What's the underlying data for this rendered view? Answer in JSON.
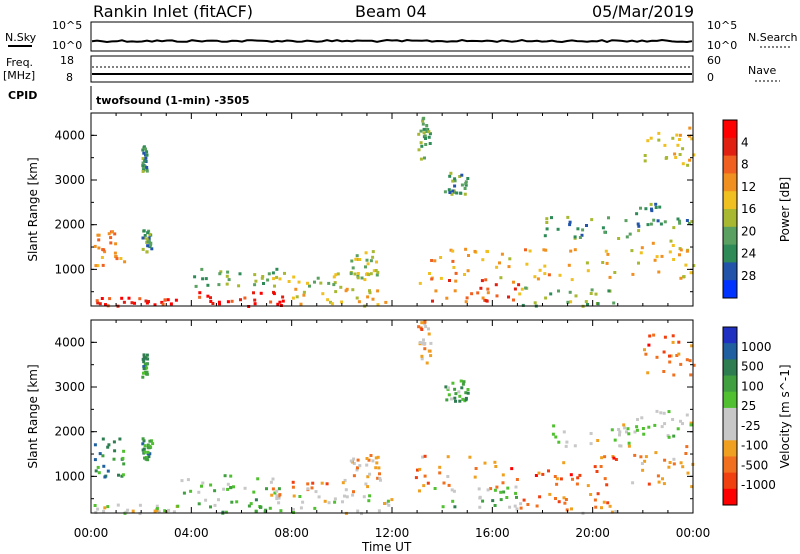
{
  "header": {
    "station": "Rankin Inlet (fitACF)",
    "beam": "Beam 04",
    "date": "05/Mar/2019"
  },
  "noise_panel": {
    "left_label": "N.Sky",
    "left_ticks": [
      "10^5",
      "10^0"
    ],
    "right_label": "N.Search",
    "right_ticks": [
      "10^5",
      "10^0"
    ]
  },
  "freq_panel": {
    "left_label_1": "Freq.",
    "left_label_2": "[MHz]",
    "left_ticks": [
      "18",
      "8"
    ],
    "right_label": "Nave",
    "right_ticks": [
      "60",
      "0"
    ]
  },
  "cpid_panel": {
    "label": "CPID",
    "text": "twofsound (1-min) -3505"
  },
  "x_axis": {
    "label": "Time UT",
    "ticks": [
      "00:00",
      "04:00",
      "08:00",
      "12:00",
      "16:00",
      "20:00",
      "00:00"
    ]
  },
  "chart_data": [
    {
      "type": "heatmap",
      "title": "",
      "xlabel": "Time UT",
      "ylabel": "Slant Range [km]",
      "xlim": [
        0,
        24
      ],
      "ylim": [
        180,
        4500
      ],
      "yticks": [
        1000,
        2000,
        3000,
        4000
      ],
      "colorbar": {
        "label": "Power [dB]",
        "ticks": [
          "4",
          "8",
          "12",
          "16",
          "20",
          "24",
          "28"
        ],
        "range": [
          0,
          30
        ],
        "colors": [
          "#0033ff",
          "#2255aa",
          "#2e8b57",
          "#5aa060",
          "#a8b830",
          "#f0c020",
          "#f09020",
          "#f06020",
          "#e02010",
          "#ff0000"
        ]
      },
      "regions": [
        {
          "t0": 0.1,
          "t1": 1.3,
          "r0": 1000,
          "r1": 1900,
          "c": 0.7
        },
        {
          "t0": 0.1,
          "t1": 3.5,
          "r0": 200,
          "r1": 400,
          "c": 0.85
        },
        {
          "t0": 2.0,
          "t1": 2.4,
          "r0": 1400,
          "r1": 1900,
          "c": 0.3
        },
        {
          "t0": 2.0,
          "t1": 2.2,
          "r0": 3200,
          "r1": 3800,
          "c": 0.3
        },
        {
          "t0": 3.5,
          "t1": 7.5,
          "r0": 650,
          "r1": 1050,
          "c": 0.35
        },
        {
          "t0": 4.2,
          "t1": 8.0,
          "r0": 200,
          "r1": 550,
          "c": 0.9
        },
        {
          "t0": 7.0,
          "t1": 11.0,
          "r0": 550,
          "r1": 950,
          "c": 0.45
        },
        {
          "t0": 8.0,
          "t1": 12.0,
          "r0": 200,
          "r1": 600,
          "c": 0.55
        },
        {
          "t0": 10.3,
          "t1": 11.5,
          "r0": 900,
          "r1": 1500,
          "c": 0.45
        },
        {
          "t0": 12.8,
          "t1": 16.5,
          "r0": 700,
          "r1": 1500,
          "c": 0.65
        },
        {
          "t0": 13.5,
          "t1": 17.0,
          "r0": 300,
          "r1": 800,
          "c": 0.75
        },
        {
          "t0": 13.0,
          "t1": 13.5,
          "r0": 3500,
          "r1": 4500,
          "c": 0.35
        },
        {
          "t0": 14.0,
          "t1": 15.0,
          "r0": 2700,
          "r1": 3200,
          "c": 0.3
        },
        {
          "t0": 16.0,
          "t1": 21.0,
          "r0": 800,
          "r1": 1500,
          "c": 0.6
        },
        {
          "t0": 17.0,
          "t1": 21.0,
          "r0": 200,
          "r1": 650,
          "c": 0.4
        },
        {
          "t0": 18.0,
          "t1": 21.5,
          "r0": 1700,
          "r1": 2200,
          "c": 0.3
        },
        {
          "t0": 21.5,
          "t1": 24.0,
          "r0": 800,
          "r1": 1700,
          "c": 0.55
        },
        {
          "t0": 22.0,
          "t1": 24.0,
          "r0": 3300,
          "r1": 4200,
          "c": 0.55
        },
        {
          "t0": 21.5,
          "t1": 24.0,
          "r0": 1900,
          "r1": 2500,
          "c": 0.3
        }
      ]
    },
    {
      "type": "heatmap",
      "title": "",
      "xlabel": "Time UT",
      "ylabel": "Slant Range [km]",
      "xlim": [
        0,
        24
      ],
      "ylim": [
        180,
        4500
      ],
      "yticks": [
        1000,
        2000,
        3000,
        4000
      ],
      "colorbar": {
        "label": "Velocity [m s^-1]",
        "ticks": [
          "1000",
          "500",
          "100",
          "25",
          "-25",
          "-100",
          "-500",
          "-1000"
        ],
        "range": [
          -1200,
          1200
        ],
        "colors": [
          "#ff0000",
          "#f04010",
          "#f07020",
          "#f0a020",
          "#c8c8c8",
          "#c8c8c8",
          "#50c030",
          "#40a040",
          "#2e7d50",
          "#2060a0",
          "#2030c0"
        ]
      },
      "regions": [
        {
          "t0": 0.1,
          "t1": 1.3,
          "r0": 1000,
          "r1": 1900,
          "c": 0.72
        },
        {
          "t0": 0.1,
          "t1": 3.5,
          "r0": 200,
          "r1": 400,
          "c": 0.45
        },
        {
          "t0": 2.0,
          "t1": 2.4,
          "r0": 1400,
          "r1": 1900,
          "c": 0.7
        },
        {
          "t0": 2.0,
          "t1": 2.2,
          "r0": 3200,
          "r1": 3800,
          "c": 0.7
        },
        {
          "t0": 3.5,
          "t1": 7.5,
          "r0": 650,
          "r1": 1050,
          "c": 0.55
        },
        {
          "t0": 4.2,
          "t1": 8.0,
          "r0": 200,
          "r1": 550,
          "c": 0.62
        },
        {
          "t0": 7.0,
          "t1": 11.0,
          "r0": 550,
          "r1": 950,
          "c": 0.3
        },
        {
          "t0": 8.0,
          "t1": 12.0,
          "r0": 200,
          "r1": 600,
          "c": 0.48
        },
        {
          "t0": 10.3,
          "t1": 11.5,
          "r0": 900,
          "r1": 1500,
          "c": 0.35
        },
        {
          "t0": 12.8,
          "t1": 16.5,
          "r0": 700,
          "r1": 1500,
          "c": 0.25
        },
        {
          "t0": 13.5,
          "t1": 17.0,
          "r0": 300,
          "r1": 800,
          "c": 0.6
        },
        {
          "t0": 13.0,
          "t1": 13.5,
          "r0": 3500,
          "r1": 4500,
          "c": 0.3
        },
        {
          "t0": 14.0,
          "t1": 15.0,
          "r0": 2700,
          "r1": 3200,
          "c": 0.65
        },
        {
          "t0": 16.0,
          "t1": 21.0,
          "r0": 800,
          "r1": 1500,
          "c": 0.18
        },
        {
          "t0": 17.0,
          "t1": 21.0,
          "r0": 200,
          "r1": 650,
          "c": 0.25
        },
        {
          "t0": 18.0,
          "t1": 21.5,
          "r0": 1700,
          "r1": 2200,
          "c": 0.45
        },
        {
          "t0": 21.5,
          "t1": 24.0,
          "r0": 800,
          "r1": 1700,
          "c": 0.3
        },
        {
          "t0": 22.0,
          "t1": 24.0,
          "r0": 3300,
          "r1": 4200,
          "c": 0.22
        },
        {
          "t0": 21.5,
          "t1": 24.0,
          "r0": 1900,
          "r1": 2500,
          "c": 0.5
        }
      ]
    }
  ]
}
